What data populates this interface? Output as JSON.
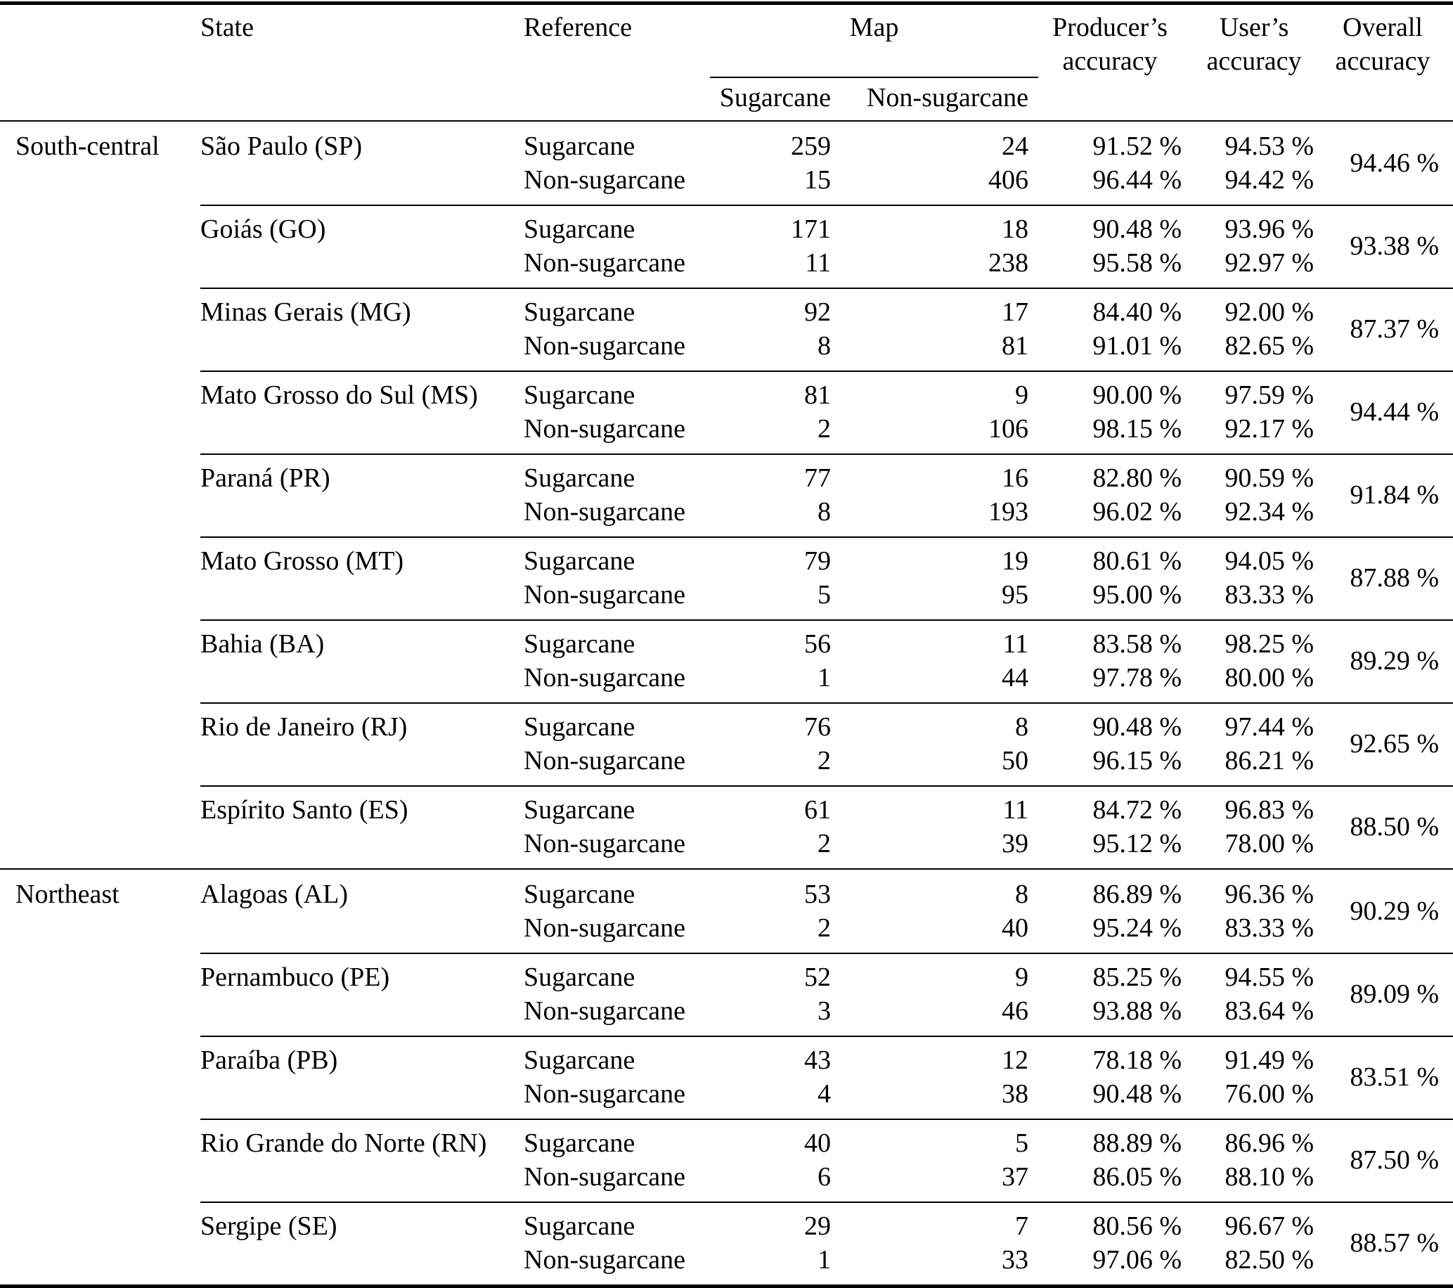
{
  "header": {
    "state": "State",
    "reference": "Reference",
    "map": "Map",
    "map_sugarcane": "Sugarcane",
    "map_non_sugarcane": "Non-sugarcane",
    "producers_accuracy": "Producer’s accuracy",
    "users_accuracy": "User’s accuracy",
    "overall_accuracy": "Overall accuracy"
  },
  "regions": [
    {
      "name": "South-central",
      "states": [
        {
          "state": "São Paulo (SP)",
          "rows": [
            {
              "reference": "Sugarcane",
              "map_sugarcane": "259",
              "map_non_sugarcane": "24",
              "producers_accuracy": "91.52 %",
              "users_accuracy": "94.53 %"
            },
            {
              "reference": "Non-sugarcane",
              "map_sugarcane": "15",
              "map_non_sugarcane": "406",
              "producers_accuracy": "96.44 %",
              "users_accuracy": "94.42 %"
            }
          ],
          "overall_accuracy": "94.46 %"
        },
        {
          "state": "Goiás (GO)",
          "rows": [
            {
              "reference": "Sugarcane",
              "map_sugarcane": "171",
              "map_non_sugarcane": "18",
              "producers_accuracy": "90.48 %",
              "users_accuracy": "93.96 %"
            },
            {
              "reference": "Non-sugarcane",
              "map_sugarcane": "11",
              "map_non_sugarcane": "238",
              "producers_accuracy": "95.58 %",
              "users_accuracy": "92.97 %"
            }
          ],
          "overall_accuracy": "93.38 %"
        },
        {
          "state": "Minas Gerais (MG)",
          "rows": [
            {
              "reference": "Sugarcane",
              "map_sugarcane": "92",
              "map_non_sugarcane": "17",
              "producers_accuracy": "84.40 %",
              "users_accuracy": "92.00 %"
            },
            {
              "reference": "Non-sugarcane",
              "map_sugarcane": "8",
              "map_non_sugarcane": "81",
              "producers_accuracy": "91.01 %",
              "users_accuracy": "82.65 %"
            }
          ],
          "overall_accuracy": "87.37 %"
        },
        {
          "state": "Mato Grosso do Sul (MS)",
          "rows": [
            {
              "reference": "Sugarcane",
              "map_sugarcane": "81",
              "map_non_sugarcane": "9",
              "producers_accuracy": "90.00 %",
              "users_accuracy": "97.59 %"
            },
            {
              "reference": "Non-sugarcane",
              "map_sugarcane": "2",
              "map_non_sugarcane": "106",
              "producers_accuracy": "98.15 %",
              "users_accuracy": "92.17 %"
            }
          ],
          "overall_accuracy": "94.44 %"
        },
        {
          "state": "Paraná (PR)",
          "rows": [
            {
              "reference": "Sugarcane",
              "map_sugarcane": "77",
              "map_non_sugarcane": "16",
              "producers_accuracy": "82.80 %",
              "users_accuracy": "90.59 %"
            },
            {
              "reference": "Non-sugarcane",
              "map_sugarcane": "8",
              "map_non_sugarcane": "193",
              "producers_accuracy": "96.02 %",
              "users_accuracy": "92.34 %"
            }
          ],
          "overall_accuracy": "91.84 %"
        },
        {
          "state": "Mato Grosso (MT)",
          "rows": [
            {
              "reference": "Sugarcane",
              "map_sugarcane": "79",
              "map_non_sugarcane": "19",
              "producers_accuracy": "80.61 %",
              "users_accuracy": "94.05 %"
            },
            {
              "reference": "Non-sugarcane",
              "map_sugarcane": "5",
              "map_non_sugarcane": "95",
              "producers_accuracy": "95.00 %",
              "users_accuracy": "83.33 %"
            }
          ],
          "overall_accuracy": "87.88 %"
        },
        {
          "state": "Bahia (BA)",
          "rows": [
            {
              "reference": "Sugarcane",
              "map_sugarcane": "56",
              "map_non_sugarcane": "11",
              "producers_accuracy": "83.58 %",
              "users_accuracy": "98.25 %"
            },
            {
              "reference": "Non-sugarcane",
              "map_sugarcane": "1",
              "map_non_sugarcane": "44",
              "producers_accuracy": "97.78 %",
              "users_accuracy": "80.00 %"
            }
          ],
          "overall_accuracy": "89.29 %"
        },
        {
          "state": "Rio de Janeiro (RJ)",
          "rows": [
            {
              "reference": "Sugarcane",
              "map_sugarcane": "76",
              "map_non_sugarcane": "8",
              "producers_accuracy": "90.48 %",
              "users_accuracy": "97.44 %"
            },
            {
              "reference": "Non-sugarcane",
              "map_sugarcane": "2",
              "map_non_sugarcane": "50",
              "producers_accuracy": "96.15 %",
              "users_accuracy": "86.21 %"
            }
          ],
          "overall_accuracy": "92.65 %"
        },
        {
          "state": "Espírito Santo (ES)",
          "rows": [
            {
              "reference": "Sugarcane",
              "map_sugarcane": "61",
              "map_non_sugarcane": "11",
              "producers_accuracy": "84.72 %",
              "users_accuracy": "96.83 %"
            },
            {
              "reference": "Non-sugarcane",
              "map_sugarcane": "2",
              "map_non_sugarcane": "39",
              "producers_accuracy": "95.12 %",
              "users_accuracy": "78.00 %"
            }
          ],
          "overall_accuracy": "88.50 %"
        }
      ]
    },
    {
      "name": "Northeast",
      "states": [
        {
          "state": "Alagoas (AL)",
          "rows": [
            {
              "reference": "Sugarcane",
              "map_sugarcane": "53",
              "map_non_sugarcane": "8",
              "producers_accuracy": "86.89 %",
              "users_accuracy": "96.36 %"
            },
            {
              "reference": "Non-sugarcane",
              "map_sugarcane": "2",
              "map_non_sugarcane": "40",
              "producers_accuracy": "95.24 %",
              "users_accuracy": "83.33 %"
            }
          ],
          "overall_accuracy": "90.29 %"
        },
        {
          "state": "Pernambuco (PE)",
          "rows": [
            {
              "reference": "Sugarcane",
              "map_sugarcane": "52",
              "map_non_sugarcane": "9",
              "producers_accuracy": "85.25 %",
              "users_accuracy": "94.55 %"
            },
            {
              "reference": "Non-sugarcane",
              "map_sugarcane": "3",
              "map_non_sugarcane": "46",
              "producers_accuracy": "93.88 %",
              "users_accuracy": "83.64 %"
            }
          ],
          "overall_accuracy": "89.09 %"
        },
        {
          "state": "Paraíba (PB)",
          "rows": [
            {
              "reference": "Sugarcane",
              "map_sugarcane": "43",
              "map_non_sugarcane": "12",
              "producers_accuracy": "78.18 %",
              "users_accuracy": "91.49 %"
            },
            {
              "reference": "Non-sugarcane",
              "map_sugarcane": "4",
              "map_non_sugarcane": "38",
              "producers_accuracy": "90.48 %",
              "users_accuracy": "76.00 %"
            }
          ],
          "overall_accuracy": "83.51 %"
        },
        {
          "state": "Rio Grande do Norte (RN)",
          "rows": [
            {
              "reference": "Sugarcane",
              "map_sugarcane": "40",
              "map_non_sugarcane": "5",
              "producers_accuracy": "88.89 %",
              "users_accuracy": "86.96 %"
            },
            {
              "reference": "Non-sugarcane",
              "map_sugarcane": "6",
              "map_non_sugarcane": "37",
              "producers_accuracy": "86.05 %",
              "users_accuracy": "88.10 %"
            }
          ],
          "overall_accuracy": "87.50 %"
        },
        {
          "state": "Sergipe (SE)",
          "rows": [
            {
              "reference": "Sugarcane",
              "map_sugarcane": "29",
              "map_non_sugarcane": "7",
              "producers_accuracy": "80.56 %",
              "users_accuracy": "96.67 %"
            },
            {
              "reference": "Non-sugarcane",
              "map_sugarcane": "1",
              "map_non_sugarcane": "33",
              "producers_accuracy": "97.06 %",
              "users_accuracy": "82.50 %"
            }
          ],
          "overall_accuracy": "88.57 %"
        }
      ]
    }
  ]
}
